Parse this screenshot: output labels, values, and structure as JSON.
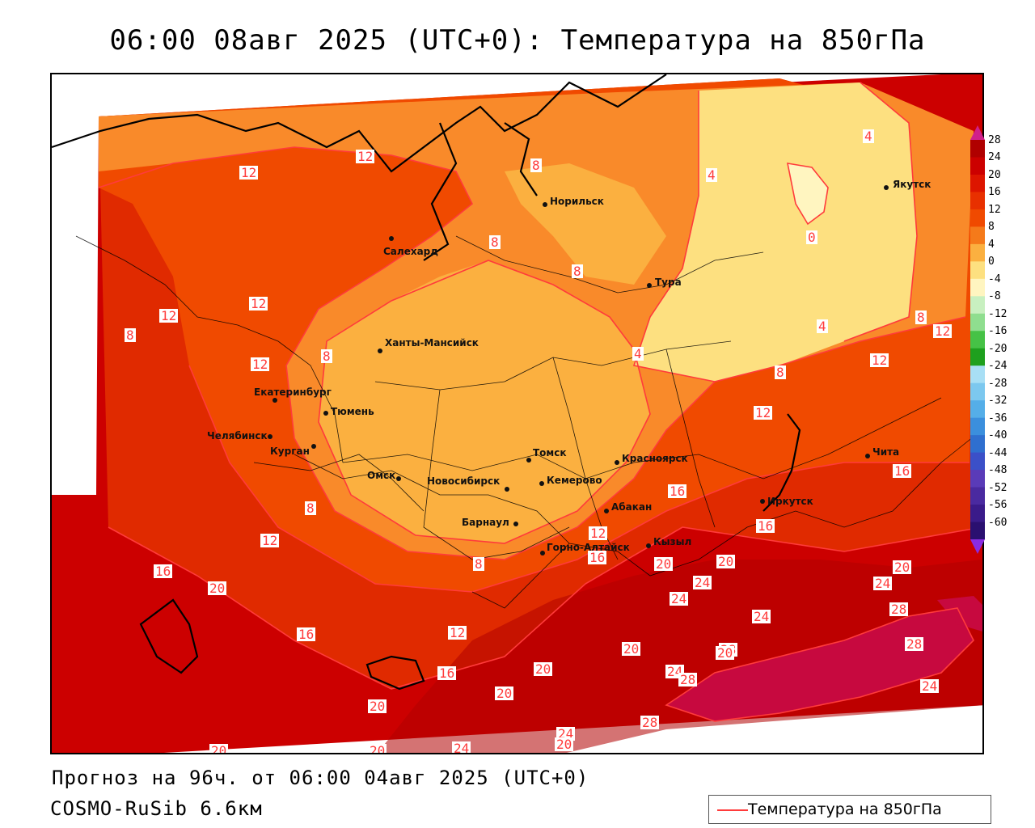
{
  "title": "06:00 08авг 2025 (UTC+0): Температура на 850гПа",
  "footer": {
    "forecast": "Прогноз на 96ч. от 06:00 04авг 2025 (UTC+0)",
    "model": "COSMO-RuSib 6.6км"
  },
  "legend": {
    "label": "Температура на 850гПа",
    "line_color": "#ff3b3b"
  },
  "colorbar": {
    "labels": [
      "28",
      "24",
      "20",
      "16",
      "12",
      "8",
      "4",
      "0",
      "-4",
      "-8",
      "-12",
      "-16",
      "-20",
      "-24",
      "-28",
      "-32",
      "-36",
      "-40",
      "-44",
      "-48",
      "-52",
      "-56",
      "-60"
    ],
    "colors": [
      "#b00000",
      "#cc0000",
      "#dd1500",
      "#e83000",
      "#f04a00",
      "#f57a1a",
      "#fbb040",
      "#fde080",
      "#fff5c0",
      "#c8f0c0",
      "#8fde8f",
      "#46c246",
      "#1ea01e",
      "#a8dff5",
      "#7cc8ef",
      "#55aee8",
      "#3b8fdd",
      "#2f6fcf",
      "#3b50c8",
      "#5a3bb8",
      "#4a2aa0",
      "#3a1b8a",
      "#2a1070"
    ]
  },
  "cities": [
    {
      "name": "Норильск"
    },
    {
      "name": "Салехард"
    },
    {
      "name": "Тура"
    },
    {
      "name": "Якутск"
    },
    {
      "name": "Ханты-Мансийск"
    },
    {
      "name": "Екатеринбург"
    },
    {
      "name": "Тюмень"
    },
    {
      "name": "Челябинск"
    },
    {
      "name": "Курган"
    },
    {
      "name": "Омск"
    },
    {
      "name": "Новосибирск"
    },
    {
      "name": "Томск"
    },
    {
      "name": "Кемерово"
    },
    {
      "name": "Красноярск"
    },
    {
      "name": "Абакан"
    },
    {
      "name": "Барнаул"
    },
    {
      "name": "Горно-Алтайск"
    },
    {
      "name": "Кызыл"
    },
    {
      "name": "Иркутск"
    },
    {
      "name": "Чита"
    }
  ],
  "contour_labels": [
    "12",
    "12",
    "8",
    "8",
    "8",
    "8",
    "4",
    "4",
    "0",
    "4",
    "8",
    "12",
    "12",
    "12",
    "8",
    "4",
    "8",
    "12",
    "12",
    "16",
    "16",
    "12",
    "16",
    "12",
    "8",
    "16",
    "12",
    "8",
    "16",
    "20",
    "16",
    "12",
    "16",
    "20",
    "20",
    "20",
    "20",
    "24",
    "24",
    "20",
    "24",
    "24",
    "20",
    "28",
    "24",
    "28",
    "28",
    "28",
    "24",
    "28",
    "24",
    "20",
    "20",
    "20",
    "24",
    "20",
    "20"
  ]
}
